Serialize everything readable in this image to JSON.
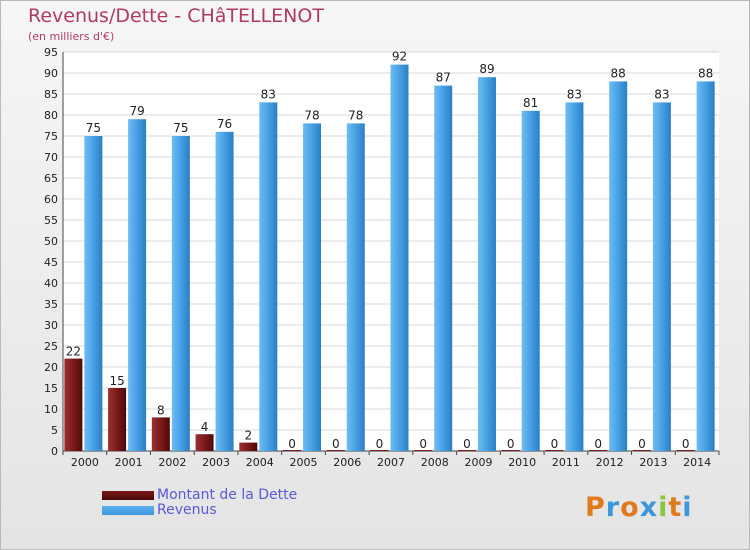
{
  "header": {
    "title": "Revenus/Dette - CHâTELLENOT",
    "subtitle": "(en milliers d'€)"
  },
  "chart_data": {
    "type": "bar",
    "title": "Revenus/Dette - CHâTELLENOT",
    "ylabel": "(en milliers d'€)",
    "categories": [
      "2000",
      "2001",
      "2002",
      "2003",
      "2004",
      "2005",
      "2006",
      "2007",
      "2008",
      "2009",
      "2010",
      "2011",
      "2012",
      "2013",
      "2014"
    ],
    "series": [
      {
        "name": "Montant de la Dette",
        "color": "#7a1a1a",
        "values": [
          22,
          15,
          8,
          4,
          2,
          0,
          0,
          0,
          0,
          0,
          0,
          0,
          0,
          0,
          0
        ]
      },
      {
        "name": "Revenus",
        "color": "#3d97dc",
        "values": [
          75,
          79,
          75,
          76,
          83,
          78,
          78,
          92,
          87,
          89,
          81,
          83,
          88,
          83,
          88
        ]
      }
    ],
    "ylim": [
      0,
      95
    ],
    "yticks": [
      0,
      5,
      10,
      15,
      20,
      25,
      30,
      35,
      40,
      45,
      50,
      55,
      60,
      65,
      70,
      75,
      80,
      85,
      90,
      95
    ],
    "grid": true,
    "legend": "bottom-left"
  },
  "legend": {
    "items": [
      {
        "label": "Montant de la Dette",
        "color": "#7a1a1a"
      },
      {
        "label": "Revenus",
        "color": "#3d97dc"
      }
    ]
  },
  "logo": {
    "text": "Proxiti"
  }
}
